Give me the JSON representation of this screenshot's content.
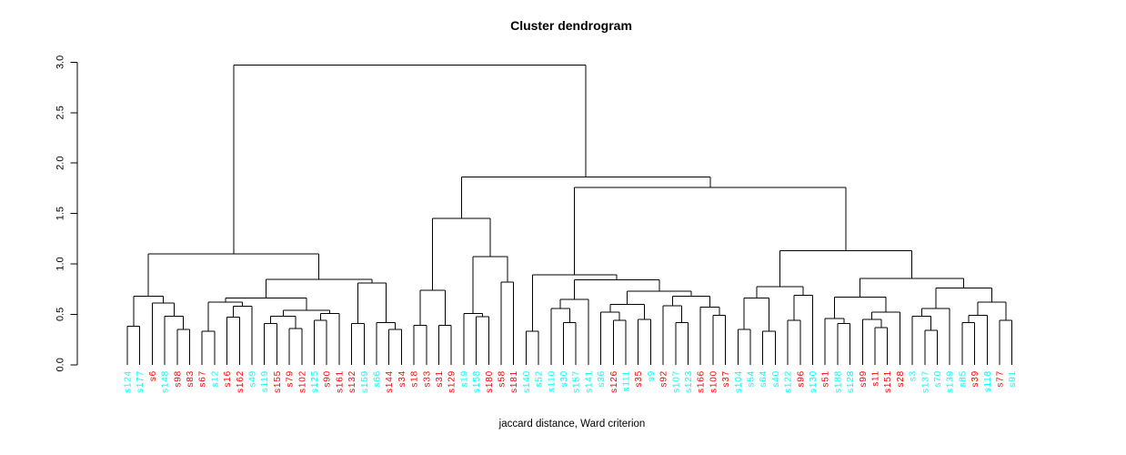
{
  "title": "Cluster dendrogram",
  "xlabel": "jaccard distance, Ward criterion",
  "colors": {
    "red": "#FF0000",
    "cyan": "#00FFFF",
    "line": "#000000"
  },
  "y_axis": {
    "ticks": [
      "0.0",
      "0.5",
      "1.0",
      "1.5",
      "2.0",
      "2.5",
      "3.0"
    ],
    "min": 0.0,
    "max": 3.0
  },
  "chart_data": {
    "type": "dendrogram",
    "title": "Cluster dendrogram",
    "xlabel": "jaccard distance, Ward criterion",
    "ylim": [
      0.0,
      3.0
    ],
    "grid": false,
    "leaves": [
      {
        "label": "s124",
        "color": "cyan"
      },
      {
        "label": "s177",
        "color": "cyan"
      },
      {
        "label": "s6",
        "color": "red"
      },
      {
        "label": "s148",
        "color": "cyan"
      },
      {
        "label": "s98",
        "color": "red"
      },
      {
        "label": "s83",
        "color": "red"
      },
      {
        "label": "s67",
        "color": "red"
      },
      {
        "label": "s12",
        "color": "cyan"
      },
      {
        "label": "s16",
        "color": "red"
      },
      {
        "label": "s162",
        "color": "red"
      },
      {
        "label": "s49",
        "color": "cyan"
      },
      {
        "label": "s119",
        "color": "cyan"
      },
      {
        "label": "s155",
        "color": "red"
      },
      {
        "label": "s79",
        "color": "red"
      },
      {
        "label": "s102",
        "color": "red"
      },
      {
        "label": "s125",
        "color": "cyan"
      },
      {
        "label": "s90",
        "color": "red"
      },
      {
        "label": "s161",
        "color": "red"
      },
      {
        "label": "s132",
        "color": "red"
      },
      {
        "label": "s159",
        "color": "cyan"
      },
      {
        "label": "s66",
        "color": "cyan"
      },
      {
        "label": "s144",
        "color": "red"
      },
      {
        "label": "s34",
        "color": "red"
      },
      {
        "label": "s18",
        "color": "red"
      },
      {
        "label": "s33",
        "color": "red"
      },
      {
        "label": "s31",
        "color": "red"
      },
      {
        "label": "s129",
        "color": "red"
      },
      {
        "label": "s19",
        "color": "cyan"
      },
      {
        "label": "s158",
        "color": "cyan"
      },
      {
        "label": "s180",
        "color": "red"
      },
      {
        "label": "s58",
        "color": "red"
      },
      {
        "label": "s181",
        "color": "red"
      },
      {
        "label": "s140",
        "color": "cyan"
      },
      {
        "label": "s52",
        "color": "cyan"
      },
      {
        "label": "s110",
        "color": "cyan"
      },
      {
        "label": "s30",
        "color": "cyan"
      },
      {
        "label": "s157",
        "color": "cyan"
      },
      {
        "label": "s141",
        "color": "cyan"
      },
      {
        "label": "s36",
        "color": "cyan"
      },
      {
        "label": "s126",
        "color": "red"
      },
      {
        "label": "s111",
        "color": "cyan"
      },
      {
        "label": "s35",
        "color": "red"
      },
      {
        "label": "s9",
        "color": "cyan"
      },
      {
        "label": "s92",
        "color": "red"
      },
      {
        "label": "s107",
        "color": "cyan"
      },
      {
        "label": "s123",
        "color": "cyan"
      },
      {
        "label": "s166",
        "color": "red"
      },
      {
        "label": "s100",
        "color": "red"
      },
      {
        "label": "s37",
        "color": "red"
      },
      {
        "label": "s104",
        "color": "cyan"
      },
      {
        "label": "s54",
        "color": "cyan"
      },
      {
        "label": "s64",
        "color": "cyan"
      },
      {
        "label": "s40",
        "color": "cyan"
      },
      {
        "label": "s122",
        "color": "cyan"
      },
      {
        "label": "s96",
        "color": "red"
      },
      {
        "label": "s130",
        "color": "cyan"
      },
      {
        "label": "s51",
        "color": "red"
      },
      {
        "label": "s188",
        "color": "cyan"
      },
      {
        "label": "s128",
        "color": "cyan"
      },
      {
        "label": "s99",
        "color": "red"
      },
      {
        "label": "s11",
        "color": "red"
      },
      {
        "label": "s151",
        "color": "red"
      },
      {
        "label": "s28",
        "color": "red"
      },
      {
        "label": "s3",
        "color": "cyan"
      },
      {
        "label": "s137",
        "color": "cyan"
      },
      {
        "label": "s70",
        "color": "cyan"
      },
      {
        "label": "s139",
        "color": "cyan"
      },
      {
        "label": "s85",
        "color": "cyan"
      },
      {
        "label": "s39",
        "color": "red"
      },
      {
        "label": "s118",
        "color": "cyan"
      },
      {
        "label": "s77",
        "color": "red"
      },
      {
        "label": "s91",
        "color": "cyan"
      }
    ],
    "tree": {
      "h": 2.97,
      "c": [
        {
          "h": 1.1,
          "c": [
            {
              "h": 0.68,
              "c": [
                {
                  "h": 0.38,
                  "c": [
                    "s124",
                    "s177"
                  ]
                },
                {
                  "h": 0.61,
                  "c": [
                    "s6",
                    {
                      "h": 0.48,
                      "c": [
                        "s148",
                        {
                          "h": 0.35,
                          "c": [
                            "s98",
                            "s83"
                          ]
                        }
                      ]
                    }
                  ]
                }
              ]
            },
            {
              "h": 0.845,
              "c": [
                {
                  "h": 0.66,
                  "c": [
                    {
                      "h": 0.62,
                      "c": [
                        {
                          "h": 0.33,
                          "c": [
                            "s67",
                            "s12"
                          ]
                        },
                        {
                          "h": 0.58,
                          "c": [
                            {
                              "h": 0.47,
                              "c": [
                                "s16",
                                "s162"
                              ]
                            },
                            "s49"
                          ]
                        }
                      ]
                    },
                    {
                      "h": 0.54,
                      "c": [
                        {
                          "h": 0.48,
                          "c": [
                            {
                              "h": 0.41,
                              "c": [
                                "s119",
                                "s155"
                              ]
                            },
                            {
                              "h": 0.36,
                              "c": [
                                "s79",
                                "s102"
                              ]
                            }
                          ]
                        },
                        {
                          "h": 0.51,
                          "c": [
                            {
                              "h": 0.44,
                              "c": [
                                "s125",
                                "s90"
                              ]
                            },
                            "s161"
                          ]
                        }
                      ]
                    }
                  ]
                },
                {
                  "h": 0.81,
                  "c": [
                    {
                      "h": 0.41,
                      "c": [
                        "s132",
                        "s159"
                      ]
                    },
                    {
                      "h": 0.42,
                      "c": [
                        "s66",
                        {
                          "h": 0.35,
                          "c": [
                            "s144",
                            "s34"
                          ]
                        }
                      ]
                    }
                  ]
                }
              ]
            }
          ]
        },
        {
          "h": 1.86,
          "c": [
            {
              "h": 1.45,
              "c": [
                {
                  "h": 0.74,
                  "c": [
                    {
                      "h": 0.39,
                      "c": [
                        "s18",
                        "s33"
                      ]
                    },
                    {
                      "h": 0.39,
                      "c": [
                        "s31",
                        "s129"
                      ]
                    }
                  ]
                },
                {
                  "h": 1.07,
                  "c": [
                    {
                      "h": 0.51,
                      "c": [
                        "s19",
                        {
                          "h": 0.475,
                          "c": [
                            "s158",
                            "s180"
                          ]
                        }
                      ]
                    },
                    {
                      "h": 0.82,
                      "c": [
                        "s58",
                        "s181"
                      ]
                    }
                  ]
                }
              ]
            },
            {
              "h": 1.76,
              "c": [
                {
                  "h": 0.89,
                  "c": [
                    {
                      "h": 0.33,
                      "c": [
                        "s140",
                        "s52"
                      ]
                    },
                    {
                      "h": 0.84,
                      "c": [
                        {
                          "h": 0.65,
                          "c": [
                            {
                              "h": 0.56,
                              "c": [
                                "s110",
                                {
                                  "h": 0.42,
                                  "c": [
                                    "s30",
                                    "s157"
                                  ]
                                }
                              ]
                            },
                            "s141"
                          ]
                        },
                        {
                          "h": 0.73,
                          "c": [
                            {
                              "h": 0.6,
                              "c": [
                                {
                                  "h": 0.52,
                                  "c": [
                                    "s36",
                                    {
                                      "h": 0.44,
                                      "c": [
                                        "s126",
                                        "s111"
                                      ]
                                    }
                                  ]
                                },
                                {
                                  "h": 0.45,
                                  "c": [
                                    "s35",
                                    "s9"
                                  ]
                                }
                              ]
                            },
                            {
                              "h": 0.68,
                              "c": [
                                {
                                  "h": 0.585,
                                  "c": [
                                    "s92",
                                    {
                                      "h": 0.42,
                                      "c": [
                                        "s107",
                                        "s123"
                                      ]
                                    }
                                  ]
                                },
                                {
                                  "h": 0.57,
                                  "c": [
                                    "s166",
                                    {
                                      "h": 0.49,
                                      "c": [
                                        "s100",
                                        "s37"
                                      ]
                                    }
                                  ]
                                }
                              ]
                            }
                          ]
                        }
                      ]
                    }
                  ]
                },
                {
                  "h": 1.13,
                  "c": [
                    {
                      "h": 0.775,
                      "c": [
                        {
                          "h": 0.66,
                          "c": [
                            {
                              "h": 0.35,
                              "c": [
                                "s104",
                                "s54"
                              ]
                            },
                            {
                              "h": 0.33,
                              "c": [
                                "s64",
                                "s40"
                              ]
                            }
                          ]
                        },
                        {
                          "h": 0.69,
                          "c": [
                            {
                              "h": 0.44,
                              "c": [
                                "s122",
                                "s96"
                              ]
                            },
                            "s130"
                          ]
                        }
                      ]
                    },
                    {
                      "h": 0.855,
                      "c": [
                        {
                          "h": 0.67,
                          "c": [
                            {
                              "h": 0.46,
                              "c": [
                                "s51",
                                {
                                  "h": 0.41,
                                  "c": [
                                    "s188",
                                    "s128"
                                  ]
                                }
                              ]
                            },
                            {
                              "h": 0.52,
                              "c": [
                                {
                                  "h": 0.45,
                                  "c": [
                                    "s99",
                                    {
                                      "h": 0.37,
                                      "c": [
                                        "s11",
                                        "s151"
                                      ]
                                    }
                                  ]
                                },
                                "s28"
                              ]
                            }
                          ]
                        },
                        {
                          "h": 0.76,
                          "c": [
                            {
                              "h": 0.56,
                              "c": [
                                {
                                  "h": 0.48,
                                  "c": [
                                    "s3",
                                    {
                                      "h": 0.34,
                                      "c": [
                                        "s137",
                                        "s70"
                                      ]
                                    }
                                  ]
                                },
                                "s139"
                              ]
                            },
                            {
                              "h": 0.62,
                              "c": [
                                {
                                  "h": 0.49,
                                  "c": [
                                    {
                                      "h": 0.42,
                                      "c": [
                                        "s85",
                                        "s39"
                                      ]
                                    },
                                    "s118"
                                  ]
                                },
                                {
                                  "h": 0.44,
                                  "c": [
                                    "s77",
                                    "s91"
                                  ]
                                }
                              ]
                            }
                          ]
                        }
                      ]
                    }
                  ]
                }
              ]
            }
          ]
        }
      ]
    }
  }
}
